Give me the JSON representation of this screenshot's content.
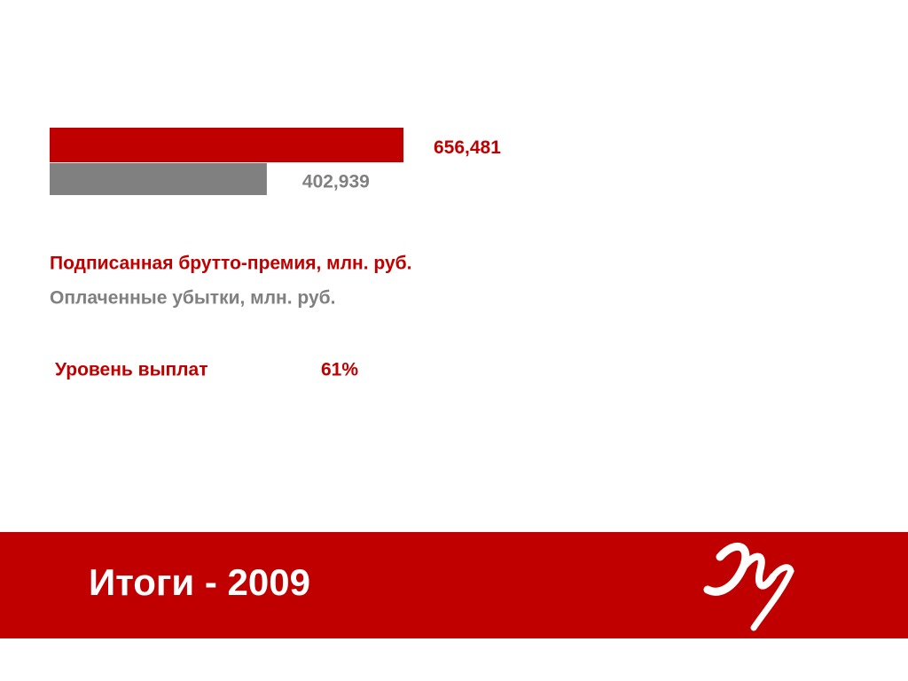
{
  "chart_data": {
    "type": "bar",
    "orientation": "horizontal",
    "title": "Итоги - 2009",
    "series": [
      {
        "name": "Подписанная брутто-премия, млн. руб.",
        "color": "#c00000",
        "values": [
          656481
        ],
        "value_labels": [
          "656,481"
        ]
      },
      {
        "name": "Оплаченные убытки, млн. руб.",
        "color": "#808080",
        "values": [
          402939
        ],
        "value_labels": [
          "402,939"
        ]
      }
    ],
    "annotations": [
      {
        "text": "Уровень выплат",
        "value": "61%"
      }
    ]
  }
}
